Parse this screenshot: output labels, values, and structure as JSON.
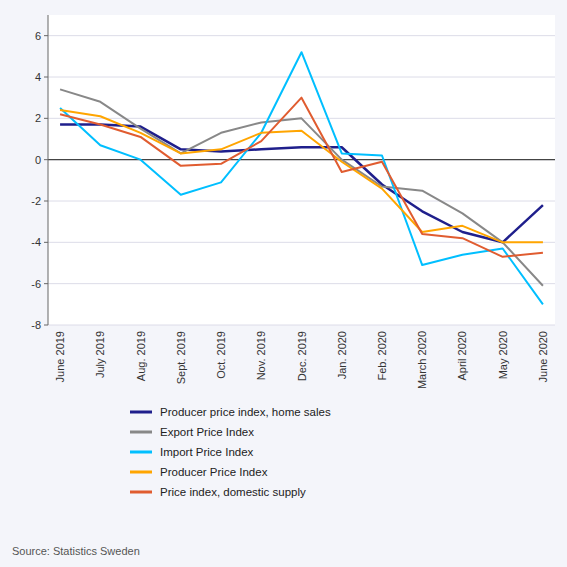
{
  "chart_data": {
    "type": "line",
    "categories": [
      "June 2019",
      "July 2019",
      "Aug. 2019",
      "Sept. 2019",
      "Oct. 2019",
      "Nov. 2019",
      "Dec. 2019",
      "Jan. 2020",
      "Feb. 2020",
      "March 2020",
      "April 2020",
      "May 2020",
      "June 2020"
    ],
    "series": [
      {
        "name": "Producer price index, home sales",
        "color": "#1f1f8c",
        "values": [
          1.7,
          1.7,
          1.6,
          0.5,
          0.4,
          0.5,
          0.6,
          0.6,
          -1.2,
          -2.5,
          -3.5,
          -4.0,
          -2.2
        ]
      },
      {
        "name": "Export Price Index",
        "color": "#888888",
        "values": [
          3.4,
          2.8,
          1.5,
          0.3,
          1.3,
          1.8,
          2.0,
          0.0,
          -1.3,
          -1.5,
          -2.6,
          -4.0,
          -6.1
        ]
      },
      {
        "name": "Import Price Index",
        "color": "#00bfff",
        "values": [
          2.5,
          0.7,
          0.0,
          -1.7,
          -1.1,
          1.3,
          5.2,
          0.3,
          0.2,
          -5.1,
          -4.6,
          -4.3,
          -7.0
        ]
      },
      {
        "name": "Producer Price Index",
        "color": "#ffa500",
        "values": [
          2.4,
          2.1,
          1.3,
          0.3,
          0.5,
          1.3,
          1.4,
          -0.1,
          -1.4,
          -3.5,
          -3.2,
          -4.0,
          -4.0
        ]
      },
      {
        "name": "Price index, domestic supply",
        "color": "#e05c30",
        "values": [
          2.2,
          1.7,
          1.1,
          -0.3,
          -0.2,
          0.9,
          3.0,
          -0.6,
          -0.1,
          -3.6,
          -3.8,
          -4.7,
          -4.5
        ]
      }
    ],
    "ylim": [
      -8,
      7
    ],
    "yticks": [
      -8,
      -6,
      -4,
      -2,
      0,
      2,
      4,
      6
    ],
    "grid": true,
    "legend": "bottom",
    "annotations": [
      "Source: Statistics Sweden"
    ]
  }
}
